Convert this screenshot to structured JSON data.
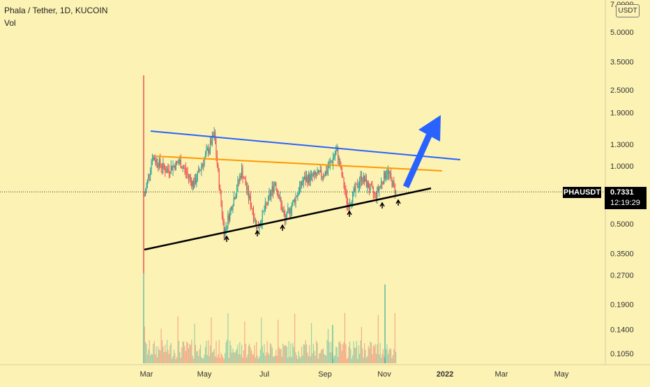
{
  "header": {
    "title": "Phala / Tether, 1D, KUCOIN",
    "indicator": "Vol"
  },
  "currency_badge": "USDT",
  "symbol_tag": "PHAUSDT",
  "price_tag": {
    "price": "0.7331",
    "countdown": "12:19:29"
  },
  "colors": {
    "background": "#fcf2b4",
    "up_candle": "#26a69a",
    "down_candle": "#ef5350",
    "upper_trendline": "#2962ff",
    "resistance_line": "#ff9800",
    "support_trendline": "#000000",
    "arrow": "#2962ff"
  },
  "chart_data": {
    "type": "candlestick",
    "title": "Phala / Tether, 1D, KUCOIN",
    "y_scale": "log",
    "ylim": [
      0.095,
      7.0
    ],
    "y_ticks": [
      7.0,
      5.0,
      3.5,
      2.5,
      1.9,
      1.3,
      1.0,
      0.73,
      0.5,
      0.35,
      0.27,
      0.19,
      0.14,
      0.105
    ],
    "y_tick_labels": [
      "7.0000",
      "5.0000",
      "3.5000",
      "2.5000",
      "1.9000",
      "1.3000",
      "1.0000",
      "",
      "0.5000",
      "0.3500",
      "0.2700",
      "0.1900",
      "0.1400",
      "0.1050"
    ],
    "x_ticks": [
      "Mar",
      "May",
      "Jul",
      "Sep",
      "Nov",
      "2022",
      "Mar",
      "May"
    ],
    "x_tick_bold": [
      false,
      false,
      false,
      false,
      false,
      true,
      false,
      false
    ],
    "last_price": 0.7331,
    "last_price_label": "0.7331",
    "countdown": "12:19:29",
    "symbol": "PHAUSDT",
    "volume_label": "Vol",
    "price_ticks_weekly": [
      {
        "date": "2021-02-27",
        "close": 0.7
      },
      {
        "date": "2021-03-07",
        "close": 1.12
      },
      {
        "date": "2021-03-21",
        "close": 0.95
      },
      {
        "date": "2021-04-04",
        "close": 1.05
      },
      {
        "date": "2021-04-18",
        "close": 0.8
      },
      {
        "date": "2021-05-09",
        "close": 1.45
      },
      {
        "date": "2021-05-19",
        "close": 0.45
      },
      {
        "date": "2021-06-06",
        "close": 0.95
      },
      {
        "date": "2021-06-22",
        "close": 0.47
      },
      {
        "date": "2021-07-10",
        "close": 0.83
      },
      {
        "date": "2021-07-20",
        "close": 0.52
      },
      {
        "date": "2021-08-08",
        "close": 0.85
      },
      {
        "date": "2021-08-30",
        "close": 0.92
      },
      {
        "date": "2021-09-11",
        "close": 1.2
      },
      {
        "date": "2021-09-22",
        "close": 0.62
      },
      {
        "date": "2021-10-06",
        "close": 0.88
      },
      {
        "date": "2021-10-20",
        "close": 0.7
      },
      {
        "date": "2021-11-01",
        "close": 0.95
      },
      {
        "date": "2021-11-10",
        "close": 0.7331
      }
    ],
    "annotations": {
      "upper_trendline": "descending line across highs",
      "resistance_line": "near-horizontal line around 1.0–1.1",
      "support_trendline": "ascending line across lows",
      "arrow": "up arrow projecting breakout",
      "markers": "small upward arrows on support touches"
    }
  }
}
